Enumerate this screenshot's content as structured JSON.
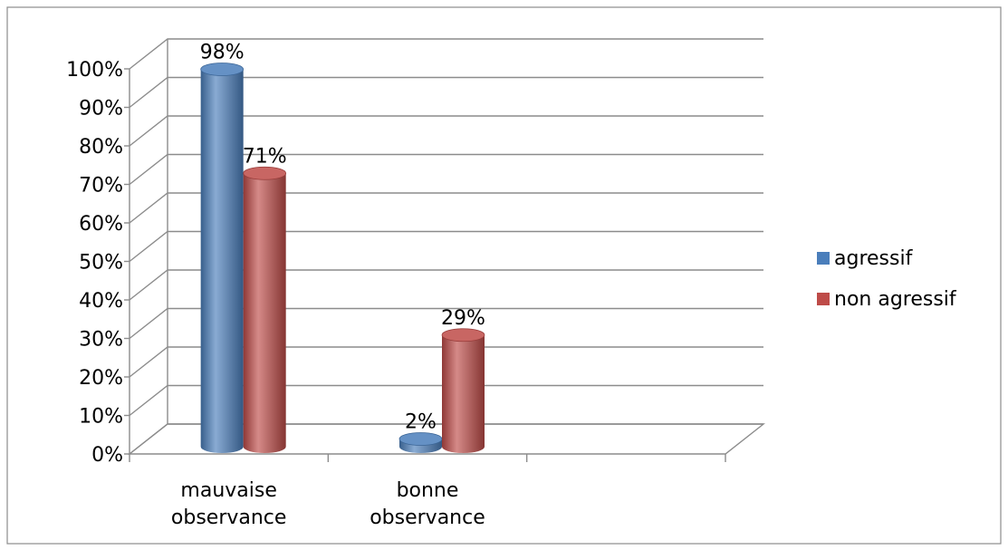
{
  "chart_data": {
    "type": "bar",
    "title": "",
    "xlabel": "",
    "ylabel": "",
    "categories": [
      [
        "mauvaise",
        "observance"
      ],
      [
        "bonne",
        "observance"
      ]
    ],
    "series": [
      {
        "name": "agressif",
        "values": [
          98,
          2
        ],
        "labels": [
          "98%",
          "2%"
        ],
        "color": "#4a7ebb"
      },
      {
        "name": "non agressif",
        "values": [
          71,
          29
        ],
        "labels": [
          "71%",
          "29%"
        ],
        "color": "#be4b48"
      }
    ],
    "ylim": [
      0,
      100
    ],
    "yticks": [
      "0%",
      "10%",
      "20%",
      "30%",
      "40%",
      "50%",
      "60%",
      "70%",
      "80%",
      "90%",
      "100%"
    ],
    "grid": true,
    "legend": "right",
    "style": "3d-cylinder"
  }
}
